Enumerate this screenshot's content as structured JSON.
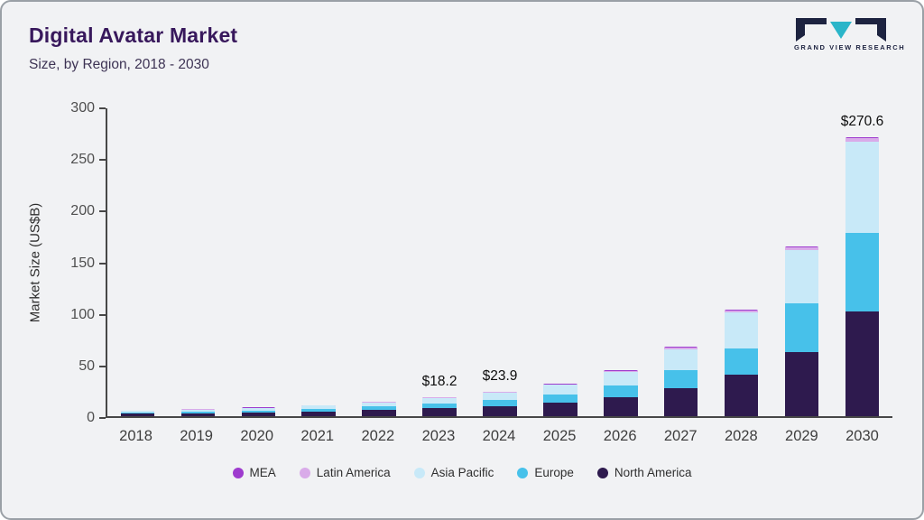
{
  "header": {
    "title": "Digital Avatar Market",
    "subtitle": "Size, by Region, 2018 - 2030"
  },
  "logo": {
    "text": "GRAND VIEW RESEARCH",
    "dark_color": "#1d2340",
    "accent_color": "#2ab5c9"
  },
  "chart_data": {
    "type": "bar",
    "stacked": true,
    "title": "Digital Avatar Market Size, by Region, 2018 - 2030",
    "xlabel": "",
    "ylabel": "Market Size (US$B)",
    "ylim": [
      0,
      300
    ],
    "yticks": [
      0,
      50,
      100,
      150,
      200,
      250,
      300
    ],
    "grid": false,
    "legend_position": "bottom",
    "categories": [
      "2018",
      "2019",
      "2020",
      "2021",
      "2022",
      "2023",
      "2024",
      "2025",
      "2026",
      "2027",
      "2028",
      "2029",
      "2030"
    ],
    "series": [
      {
        "name": "North America",
        "color": "#2e1a4e",
        "values": [
          2.3,
          2.8,
          3.5,
          4.5,
          5.8,
          7.6,
          9.9,
          13.0,
          18.5,
          27.5,
          40.5,
          62.5,
          101.5
        ]
      },
      {
        "name": "Europe",
        "color": "#47c1ea",
        "values": [
          1.4,
          1.7,
          2.2,
          2.8,
          3.6,
          4.7,
          6.1,
          8.0,
          11.5,
          17.0,
          25.0,
          46.5,
          76.0
        ]
      },
      {
        "name": "Asia Pacific",
        "color": "#c8e9f8",
        "values": [
          1.6,
          1.9,
          2.4,
          3.1,
          4.0,
          5.3,
          7.0,
          9.2,
          13.0,
          20.5,
          35.0,
          52.0,
          88.0
        ]
      },
      {
        "name": "Latin America",
        "color": "#d9abe9",
        "values": [
          0.1,
          0.2,
          0.2,
          0.2,
          0.3,
          0.4,
          0.6,
          0.8,
          1.1,
          1.5,
          2.0,
          2.5,
          3.5
        ]
      },
      {
        "name": "MEA",
        "color": "#9e3bce",
        "values": [
          0.1,
          0.1,
          0.1,
          0.1,
          0.1,
          0.2,
          0.3,
          0.4,
          0.5,
          0.7,
          0.9,
          1.2,
          1.6
        ]
      }
    ],
    "annotations": [
      {
        "category": "2023",
        "label": "$18.2"
      },
      {
        "category": "2024",
        "label": "$23.9"
      },
      {
        "category": "2030",
        "label": "$270.6"
      }
    ],
    "legend": [
      "MEA",
      "Latin America",
      "Asia Pacific",
      "Europe",
      "North America"
    ]
  }
}
